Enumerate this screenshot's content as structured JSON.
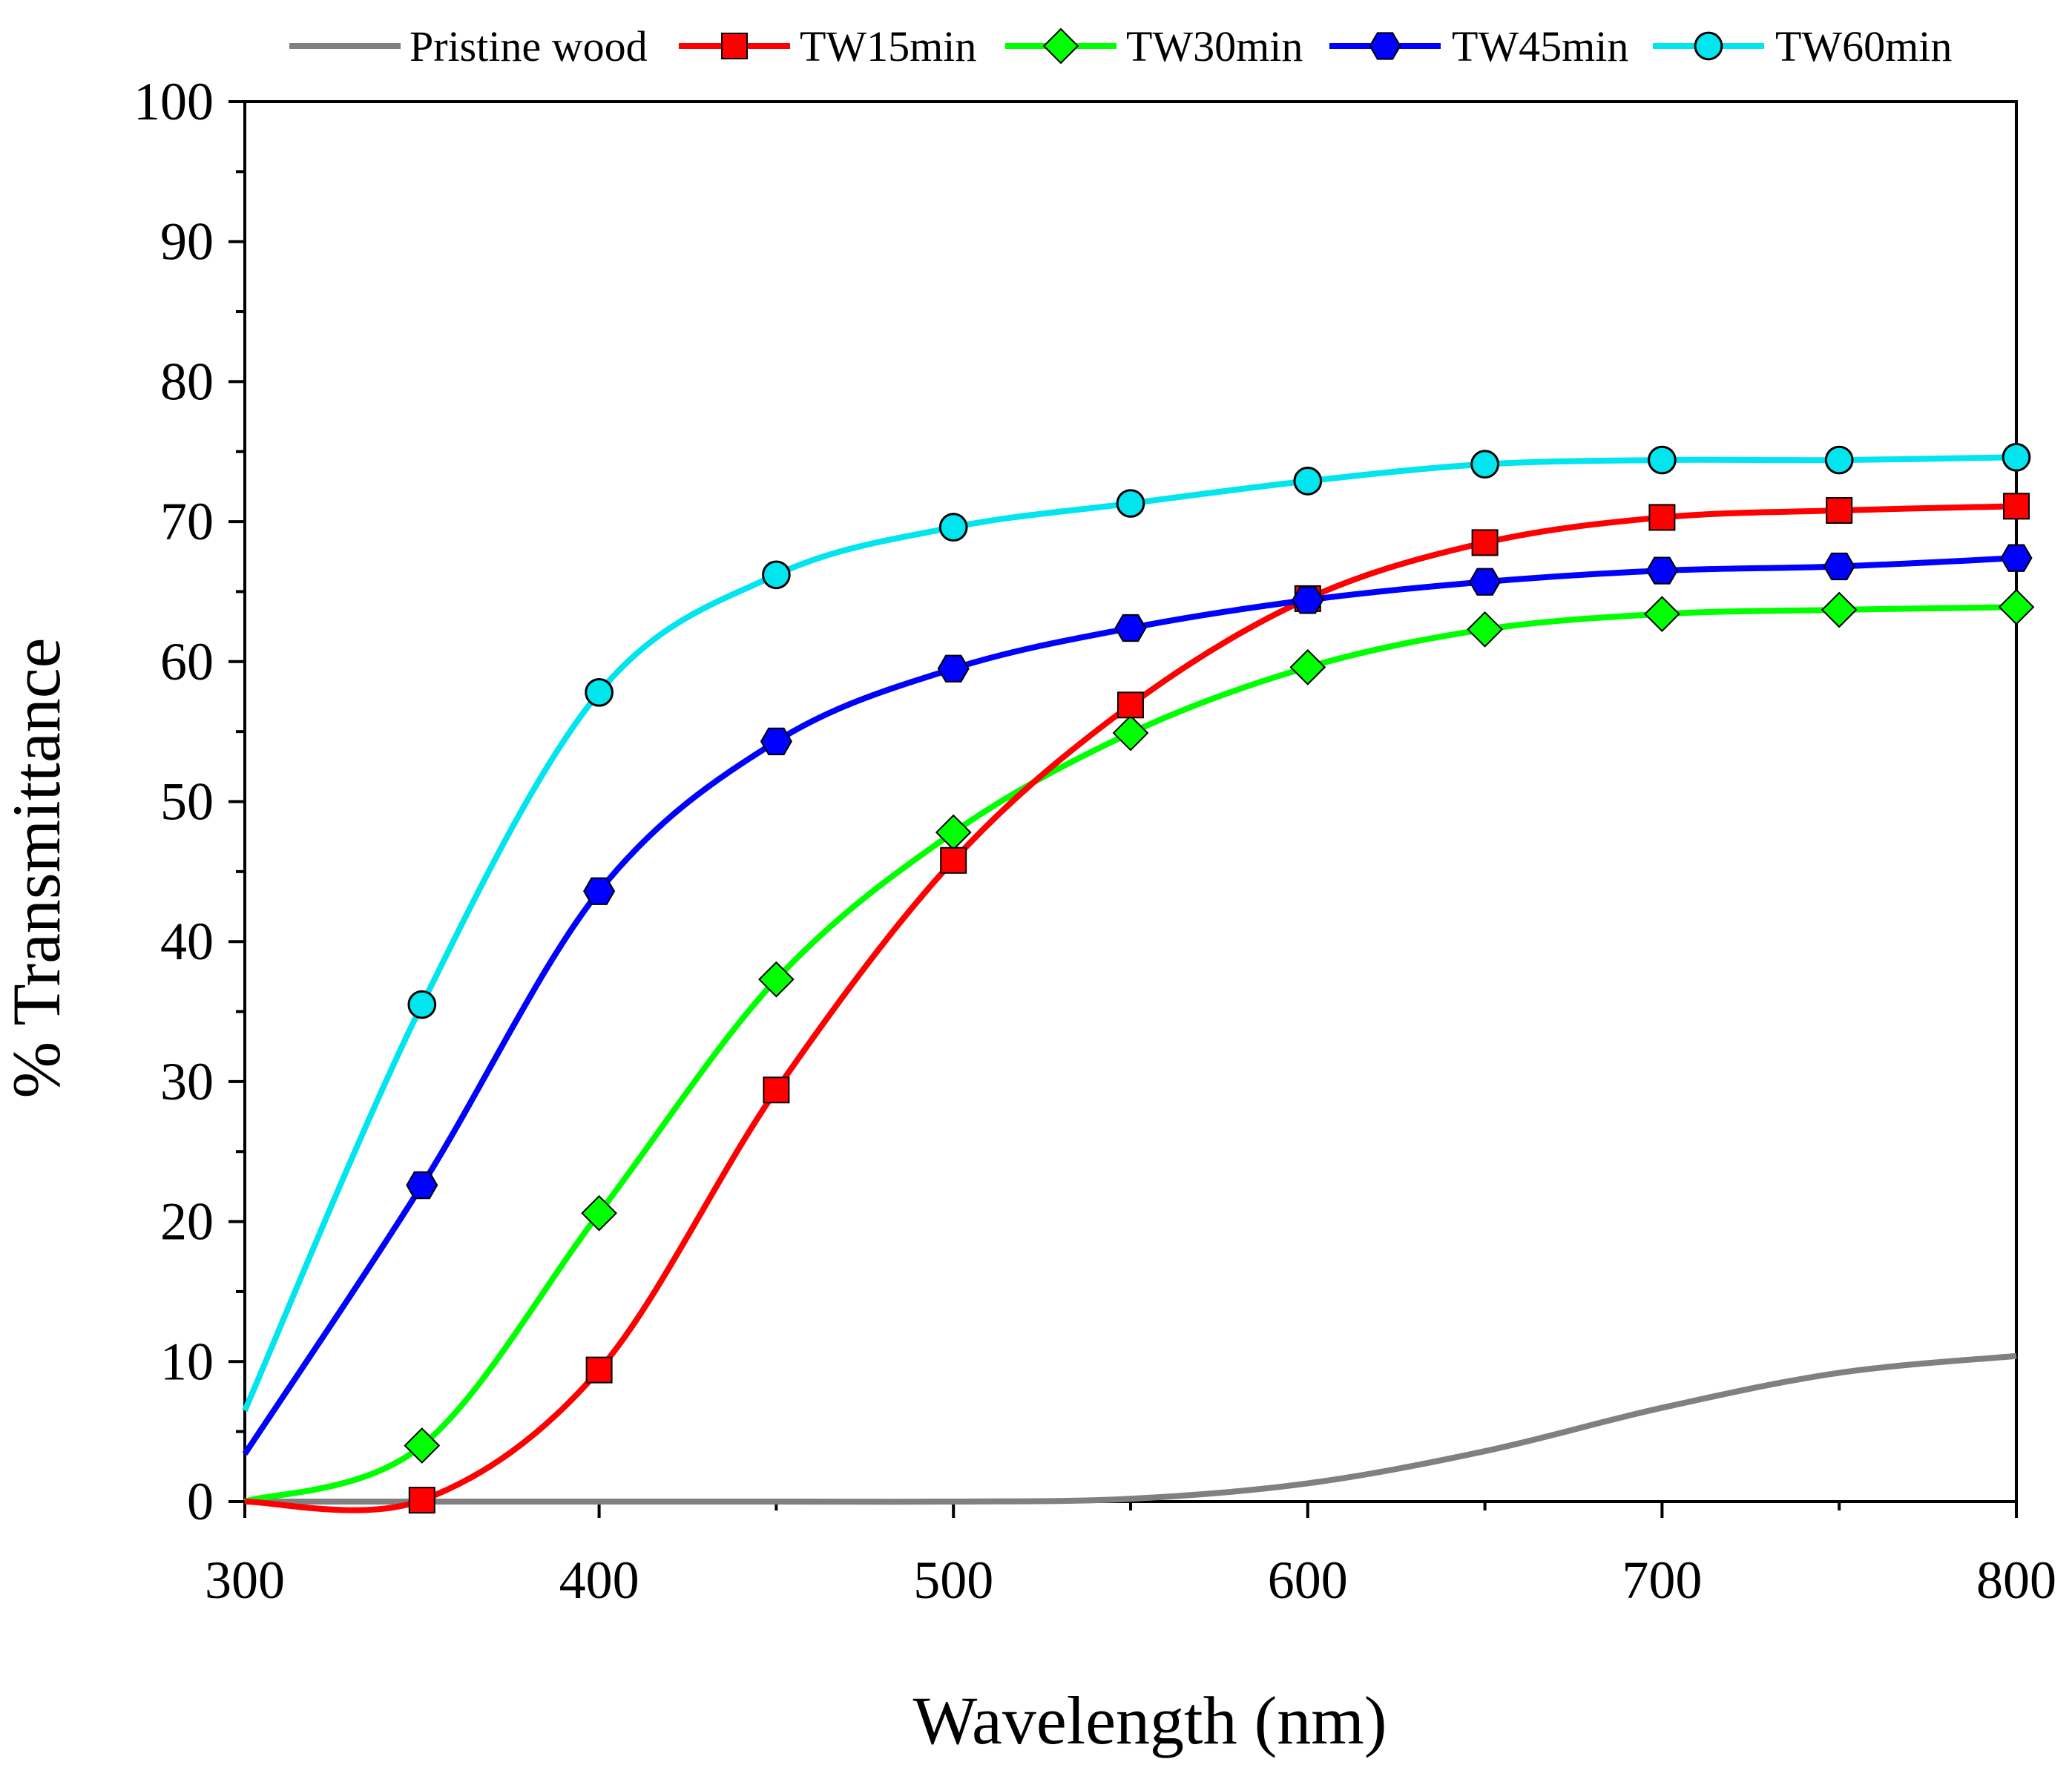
{
  "chart_data": {
    "type": "line",
    "title": "",
    "xlabel": "Wavelength (nm)",
    "ylabel": "% Transmittance",
    "xlim": [
      300,
      800
    ],
    "ylim": [
      0,
      100
    ],
    "x_major_ticks": [
      300,
      400,
      500,
      600,
      700,
      800
    ],
    "y_major_ticks": [
      0,
      10,
      20,
      30,
      40,
      50,
      60,
      70,
      80,
      90,
      100
    ],
    "x_tick_labels": [
      "300",
      "400",
      "500",
      "600",
      "700",
      "800"
    ],
    "y_tick_labels": [
      "0",
      "10",
      "20",
      "30",
      "40",
      "50",
      "60",
      "70",
      "80",
      "90",
      "100"
    ],
    "grid": false,
    "legend_position": "top",
    "series": [
      {
        "name": "Pristine wood",
        "color": "#808080",
        "marker": "none",
        "x": [
          300,
          350,
          400,
          450,
          500,
          550,
          600,
          650,
          700,
          750,
          800
        ],
        "y": [
          0,
          0,
          0,
          0,
          0,
          0.2,
          1.3,
          3.6,
          6.7,
          9.2,
          10.4
        ]
      },
      {
        "name": "TW15min",
        "color": "#ff0000",
        "marker": "square",
        "x": [
          300,
          350,
          400,
          450,
          500,
          550,
          600,
          650,
          700,
          750,
          800
        ],
        "y": [
          0,
          0.1,
          9.4,
          29.4,
          45.8,
          56.9,
          64.5,
          68.5,
          70.3,
          70.8,
          71.1
        ]
      },
      {
        "name": "TW30min",
        "color": "#00ff00",
        "marker": "diamond",
        "x": [
          300,
          350,
          400,
          450,
          500,
          550,
          600,
          650,
          700,
          750,
          800
        ],
        "y": [
          0,
          4.0,
          20.6,
          37.3,
          47.8,
          54.9,
          59.6,
          62.3,
          63.4,
          63.7,
          63.9
        ]
      },
      {
        "name": "TW45min",
        "color": "#0000ff",
        "marker": "hexagon",
        "x": [
          300,
          350,
          400,
          450,
          500,
          550,
          600,
          650,
          700,
          750,
          800
        ],
        "y": [
          3.4,
          22.6,
          43.6,
          54.3,
          59.5,
          62.4,
          64.4,
          65.7,
          66.5,
          66.8,
          67.4
        ]
      },
      {
        "name": "TW60min",
        "color": "#00e5ee",
        "marker": "circle",
        "x": [
          300,
          350,
          400,
          450,
          500,
          550,
          600,
          650,
          700,
          750,
          800
        ],
        "y": [
          6.5,
          35.5,
          57.8,
          66.2,
          69.6,
          71.3,
          72.9,
          74.1,
          74.4,
          74.4,
          74.6
        ]
      }
    ]
  }
}
